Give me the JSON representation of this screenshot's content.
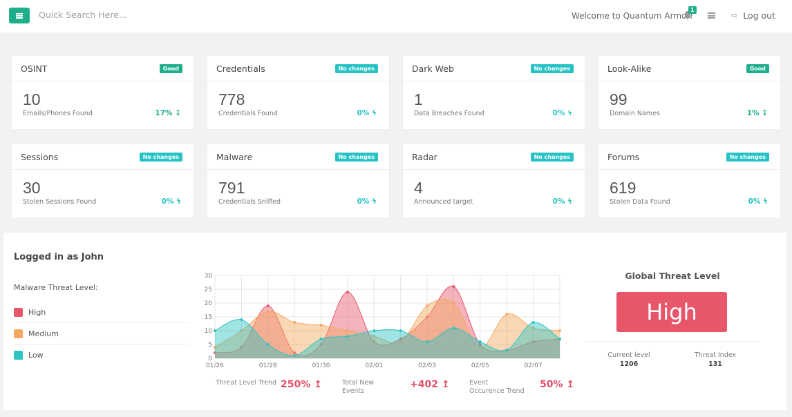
{
  "header": {
    "search_placeholder": "Quick Search Here...",
    "welcome": "Welcome to Quantum Armor!",
    "notification_count": "1",
    "logout": "Log out"
  },
  "colors": {
    "good": "#1fae8c",
    "no_changes": "#27c3c4",
    "high": "#e8566a",
    "medium": "#f5a85e",
    "low": "#2ec4c4"
  },
  "cards": [
    {
      "title": "OSINT",
      "status": "Good",
      "value": "10",
      "label": "Emails/Phones Found",
      "change": "17% ↧"
    },
    {
      "title": "Credentials",
      "status": "No changes",
      "value": "778",
      "label": "Credentials Found",
      "change": "0% ϟ"
    },
    {
      "title": "Dark Web",
      "status": "No changes",
      "value": "1",
      "label": "Data Breaches Found",
      "change": "0% ϟ"
    },
    {
      "title": "Look-Alike",
      "status": "Good",
      "value": "99",
      "label": "Domain Names",
      "change": "1% ↧"
    },
    {
      "title": "Sessions",
      "status": "No changes",
      "value": "30",
      "label": "Stolen Sessions Found",
      "change": "0% ϟ"
    },
    {
      "title": "Malware",
      "status": "No changes",
      "value": "791",
      "label": "Credentials Sniffed",
      "change": "0% ϟ"
    },
    {
      "title": "Radar",
      "status": "No changes",
      "value": "4",
      "label": "Announced target",
      "change": "0% ϟ"
    },
    {
      "title": "Forums",
      "status": "No changes",
      "value": "619",
      "label": "Stolen Data Found",
      "change": "0% ϟ"
    }
  ],
  "panel": {
    "logged_in": "Logged in as John",
    "threat_label": "Malware Threat Level:",
    "legend": [
      "High",
      "Medium",
      "Low"
    ]
  },
  "stats": [
    {
      "label": "Threat Level Trend",
      "value": "250% ↥"
    },
    {
      "label": "Total New Events",
      "value": "+402 ↥"
    },
    {
      "label": "Event Occurence Trend",
      "value": "50% ↥"
    }
  ],
  "global": {
    "title": "Global Threat Level",
    "level": "High",
    "current_label": "Current level",
    "current_value": "1206",
    "index_label": "Threat Index",
    "index_value": "131"
  },
  "chart_data": {
    "type": "area",
    "ylim": [
      0,
      30
    ],
    "yticks": [
      0,
      5,
      10,
      15,
      20,
      25,
      30
    ],
    "x": [
      "01/26",
      "01/27",
      "01/28",
      "01/29",
      "01/30",
      "01/31",
      "02/01",
      "02/02",
      "02/03",
      "02/04",
      "02/05",
      "02/06",
      "02/07",
      "02/08"
    ],
    "xtick_labels": [
      "01/26",
      "01/28",
      "01/30",
      "02/01",
      "02/03",
      "02/05",
      "02/07"
    ],
    "grid": true,
    "series": [
      {
        "name": "High",
        "color": "#e8566a",
        "values": [
          2,
          4,
          19,
          2,
          5,
          24,
          6,
          7,
          15,
          26,
          5,
          3,
          6,
          7
        ]
      },
      {
        "name": "Medium",
        "color": "#f5a85e",
        "values": [
          4,
          10,
          17,
          13,
          12,
          10,
          8,
          6,
          19,
          20,
          4,
          16,
          11,
          10
        ]
      },
      {
        "name": "Low",
        "color": "#2ec4c4",
        "values": [
          10,
          14,
          5,
          1,
          7,
          8,
          10,
          10,
          6,
          11,
          6,
          3,
          13,
          7
        ]
      }
    ]
  }
}
